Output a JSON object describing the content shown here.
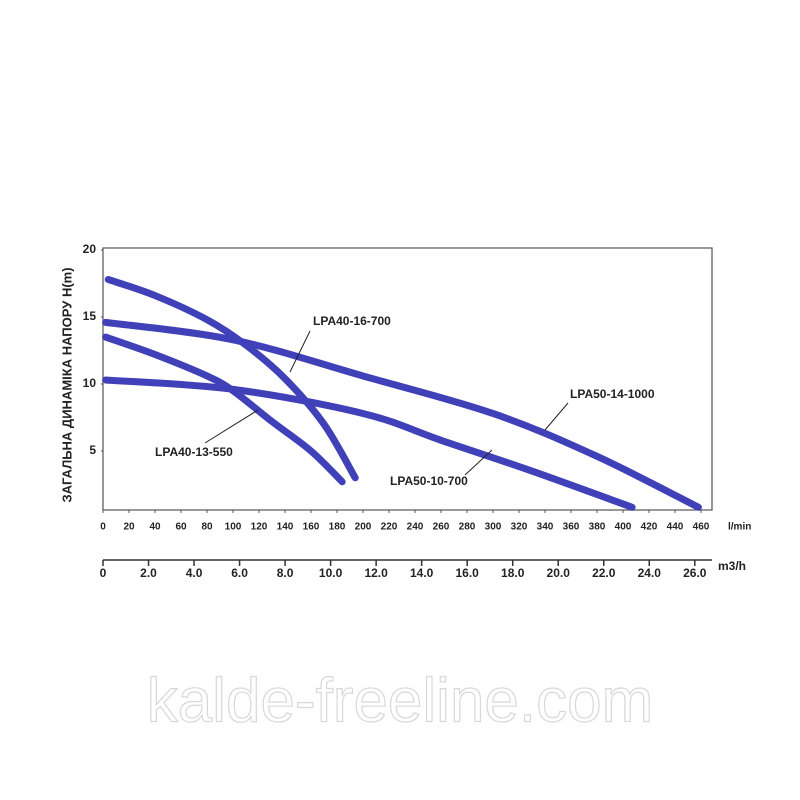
{
  "chart_data": {
    "type": "line",
    "y_label": "ЗАГАЛЬНА ДИНАМІКА НАПОРУ H(m)",
    "x_label": "l/min",
    "x2_label": "m3/h",
    "watermark": "kalde-freeline.com",
    "xlim": [
      0,
      470
    ],
    "xticks": [
      0,
      20,
      40,
      60,
      80,
      100,
      120,
      140,
      160,
      180,
      200,
      220,
      240,
      260,
      280,
      300,
      320,
      340,
      360,
      380,
      400,
      420,
      440,
      460
    ],
    "x2lim": [
      0,
      26.8
    ],
    "x2ticks": [
      0,
      {
        "value": 2,
        "label": "2.0"
      },
      {
        "value": 4,
        "label": "4.0"
      },
      {
        "value": 6,
        "label": "6.0"
      },
      {
        "value": 8,
        "label": "8.0"
      },
      {
        "value": 10,
        "label": "10.0"
      },
      {
        "value": 12,
        "label": "12.0"
      },
      {
        "value": 14,
        "label": "14.0"
      },
      {
        "value": 16,
        "label": "16.0"
      },
      {
        "value": 18,
        "label": "18.0"
      },
      {
        "value": 20,
        "label": "20.0"
      },
      {
        "value": 22,
        "label": "22.0"
      },
      {
        "value": 24,
        "label": "24.0"
      },
      {
        "value": 26,
        "label": "26.0"
      }
    ],
    "ylim": [
      0,
      20
    ],
    "yticks": [
      5,
      10,
      15,
      20
    ],
    "series": [
      {
        "name": "LPA40-16-700",
        "color": "#4040b8",
        "x": [
          4,
          40,
          80,
          110,
          140,
          170,
          194
        ],
        "values": [
          17.8,
          16.6,
          14.8,
          12.9,
          10.4,
          7.0,
          3.0
        ]
      },
      {
        "name": "LPA40-13-550",
        "color": "#4040b8",
        "x": [
          2,
          40,
          80,
          100,
          130,
          160,
          184
        ],
        "values": [
          13.5,
          12.2,
          10.6,
          9.5,
          7.2,
          5.0,
          2.7
        ]
      },
      {
        "name": "LPA50-14-1000",
        "color": "#4040b8",
        "x": [
          2,
          100,
          200,
          300,
          380,
          458
        ],
        "values": [
          14.6,
          13.3,
          10.6,
          7.8,
          4.6,
          0.8
        ]
      },
      {
        "name": "LPA50-10-700",
        "color": "#4040b8",
        "x": [
          2,
          100,
          200,
          260,
          330,
          407
        ],
        "values": [
          10.3,
          9.6,
          7.8,
          5.8,
          3.5,
          0.8
        ]
      }
    ]
  }
}
